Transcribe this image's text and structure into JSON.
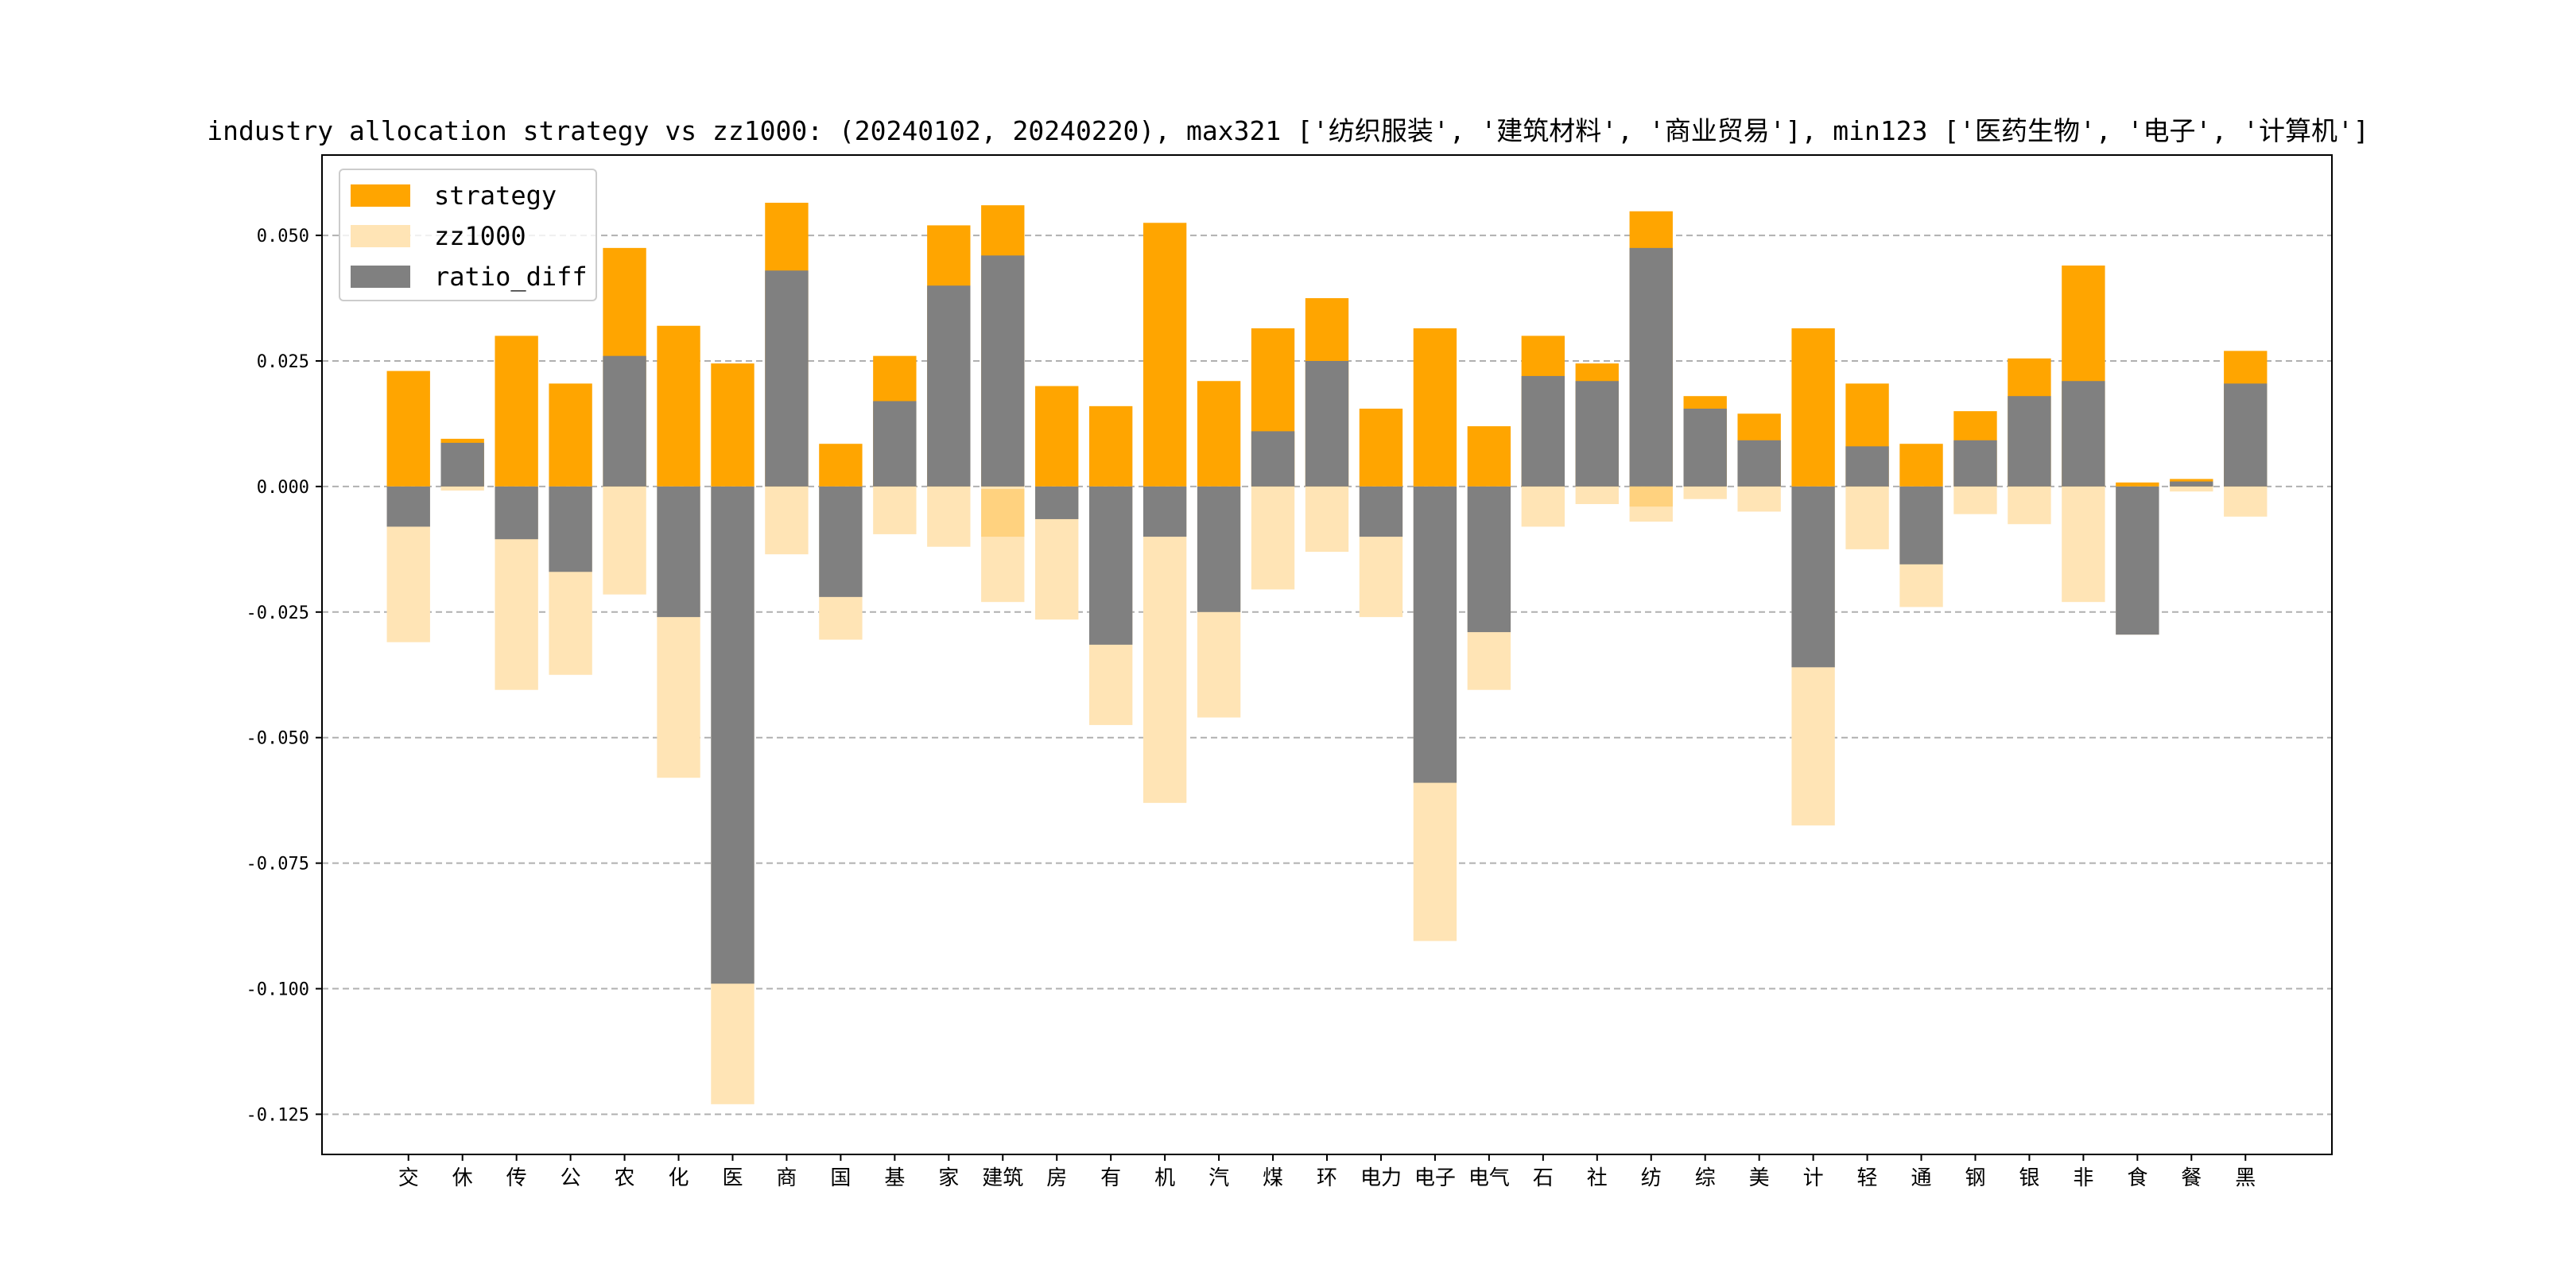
{
  "chart_data": {
    "type": "bar",
    "title": "industry allocation strategy vs zz1000: (20240102, 20240220), max321 ['纺织服装', '建筑材料', '商业贸易'], min123 ['医药生物', '电子', '计算机']",
    "xlabel": "",
    "ylabel": "",
    "ylim": [
      -0.133,
      0.066
    ],
    "yticks": [
      0.05,
      0.025,
      0.0,
      -0.025,
      -0.05,
      -0.075,
      -0.1,
      -0.125
    ],
    "ytick_labels": [
      "0.050",
      "0.025",
      "0.000",
      "-0.025",
      "-0.050",
      "-0.075",
      "-0.100",
      "-0.125"
    ],
    "grid": "horizontal dashed",
    "legend_position": "upper-left",
    "categories": [
      "交",
      "休",
      "传",
      "公",
      "农",
      "化",
      "医",
      "商",
      "国",
      "基",
      "家",
      "建筑",
      "房",
      "有",
      "机",
      "汽",
      "煤",
      "环",
      "电力",
      "电子",
      "电气",
      "石",
      "社",
      "纺",
      "综",
      "美",
      "计",
      "轻",
      "通",
      "钢",
      "银",
      "非",
      "食",
      "餐",
      "黑"
    ],
    "series": [
      {
        "name": "strategy",
        "color": "#FFA500",
        "values": [
          0.023,
          0.0095,
          0.03,
          0.0205,
          0.0475,
          0.032,
          0.0245,
          0.0565,
          0.0085,
          0.026,
          0.052,
          0.056,
          0.02,
          0.016,
          0.0525,
          0.021,
          0.0315,
          0.0375,
          0.0155,
          0.0315,
          0.012,
          0.03,
          0.0245,
          0.0548,
          0.018,
          0.0145,
          0.0315,
          0.0205,
          0.0085,
          0.015,
          0.0255,
          0.044,
          0.0008,
          0.0015,
          0.027
        ]
      },
      {
        "name": "zz1000",
        "color": "#FFE4B5",
        "values": [
          -0.031,
          -0.0008,
          -0.0405,
          -0.0375,
          -0.0215,
          -0.058,
          -0.123,
          -0.0135,
          -0.0305,
          -0.0095,
          -0.012,
          -0.023,
          -0.0265,
          -0.0475,
          -0.063,
          -0.046,
          -0.0205,
          -0.013,
          -0.026,
          -0.0905,
          -0.0405,
          -0.008,
          -0.0035,
          -0.007,
          -0.0025,
          -0.005,
          -0.0675,
          -0.0125,
          -0.024,
          -0.0055,
          -0.0075,
          -0.023,
          -0.0295,
          -0.001,
          -0.006
        ]
      },
      {
        "name": "ratio_diff",
        "color": "#808080",
        "values": [
          -0.008,
          0.0087,
          -0.0105,
          -0.017,
          0.026,
          -0.026,
          -0.099,
          0.043,
          -0.022,
          0.017,
          0.04,
          0.046,
          -0.0065,
          -0.0315,
          -0.01,
          -0.025,
          0.011,
          0.025,
          -0.01,
          -0.059,
          -0.029,
          0.022,
          0.021,
          0.0475,
          0.0155,
          0.0092,
          -0.036,
          0.008,
          -0.0155,
          0.0092,
          0.018,
          0.021,
          -0.0295,
          0.001,
          0.0205
        ]
      }
    ],
    "overlay_extras": [
      {
        "category": "建筑",
        "from": -0.0005,
        "to": -0.01,
        "color": "#FFD27F",
        "note": "overlap of strategy and zz1000 bars"
      },
      {
        "category": "纺",
        "from": -0.004,
        "to": 0.0,
        "color": "#FFD27F",
        "note": "overlap of strategy and zz1000 bars"
      }
    ]
  }
}
